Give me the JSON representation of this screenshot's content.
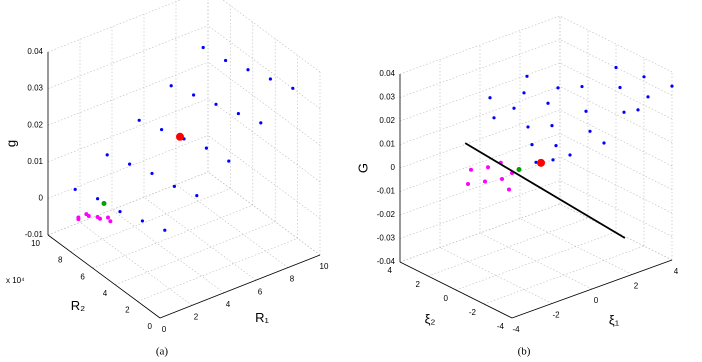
{
  "chart_data": [
    {
      "type": "scatter3d",
      "caption": "(a)",
      "xlabel": "R₁",
      "ylabel": "R₂",
      "zlabel": "g",
      "exponent": "x 10⁴",
      "xlim": [
        0,
        10
      ],
      "ylim": [
        0,
        10
      ],
      "zlim": [
        -0.01,
        0.04
      ],
      "xticks": [
        0,
        2,
        4,
        6,
        8,
        10
      ],
      "yticks": [
        0,
        2,
        4,
        6,
        8,
        10
      ],
      "zticks": [
        -0.01,
        0,
        0.01,
        0.02,
        0.03,
        0.04
      ],
      "series": [
        {
          "color": "#0000ff",
          "size": 1.6,
          "x": [
            1,
            1,
            1,
            1,
            1,
            3,
            3,
            3,
            3,
            3,
            5,
            5,
            5,
            5,
            5,
            7,
            7,
            7,
            7,
            7,
            9,
            9,
            9,
            9,
            9
          ],
          "y": [
            1,
            3,
            5,
            7,
            9,
            1,
            3,
            5,
            7,
            9,
            1,
            3,
            5,
            7,
            9,
            1,
            3,
            5,
            7,
            9,
            1,
            3,
            5,
            7,
            9
          ],
          "z": [
            0.01,
            0.008,
            0.006,
            0.005,
            0.003,
            0.016,
            0.014,
            0.013,
            0.011,
            0.009,
            0.022,
            0.021,
            0.019,
            0.017,
            0.015,
            0.029,
            0.027,
            0.025,
            0.023,
            0.021,
            0.035,
            0.033,
            0.031,
            0.029,
            0.028
          ]
        },
        {
          "color": "#ff00ff",
          "size": 2,
          "x": [
            0.5,
            1,
            1.5,
            0.8,
            2,
            1.2,
            2.5,
            0.3
          ],
          "y": [
            8,
            7,
            8.5,
            6.5,
            7.5,
            9,
            8,
            7
          ],
          "z": [
            -0.002,
            0,
            -0.004,
            0.001,
            -0.003,
            -0.005,
            -0.006,
            0.002
          ]
        },
        {
          "color": "#00a000",
          "size": 2.5,
          "x": [
            1.4
          ],
          "y": [
            7
          ],
          "z": [
            0.003
          ]
        },
        {
          "color": "#ff0000",
          "size": 4,
          "x": [
            4.75
          ],
          "y": [
            5
          ],
          "z": [
            0.02
          ]
        }
      ]
    },
    {
      "type": "scatter3d",
      "caption": "(b)",
      "xlabel": "ξ₁",
      "ylabel": "ξ₂",
      "zlabel": "G",
      "xlim": [
        -4,
        4
      ],
      "ylim": [
        -4,
        4
      ],
      "zlim": [
        -0.04,
        0.04
      ],
      "xticks": [
        -4,
        -2,
        0,
        2,
        4
      ],
      "yticks": [
        -4,
        -2,
        0,
        2,
        4
      ],
      "zticks": [
        -0.04,
        -0.03,
        -0.02,
        -0.01,
        0,
        0.01,
        0.02,
        0.03,
        0.04
      ],
      "series": [
        {
          "color": "#0000ff",
          "size": 1.6,
          "x": [
            0,
            0.5,
            1,
            0,
            0.5,
            1,
            1.5,
            2,
            1.5,
            2,
            2.5,
            3,
            2.5,
            3,
            3.5,
            4,
            3.5,
            4,
            4,
            3,
            0.5,
            1,
            2,
            1,
            2
          ],
          "y": [
            0,
            1,
            2,
            3,
            4,
            0,
            1,
            2,
            3,
            -1,
            0,
            1,
            2,
            -2,
            -1,
            0,
            -3,
            -4,
            -2,
            -3,
            -0.5,
            -1,
            -2,
            3,
            3.5
          ],
          "z": [
            0.002,
            0.005,
            0.008,
            0.012,
            0.016,
            0.006,
            0.01,
            0.015,
            0.018,
            0.012,
            0.016,
            0.022,
            0.02,
            0.02,
            0.026,
            0.03,
            0.028,
            0.034,
            0.032,
            0.024,
            0.003,
            0.005,
            0.01,
            0.013,
            0.022
          ]
        },
        {
          "color": "#ff00ff",
          "size": 2,
          "x": [
            -1,
            -1.5,
            -1,
            -0.5,
            -1.5,
            -2,
            -1,
            -0.5
          ],
          "y": [
            1,
            1.5,
            2,
            1,
            2.5,
            2,
            0.5,
            1.8
          ],
          "z": [
            -0.005,
            -0.006,
            -0.003,
            -0.004,
            -0.004,
            -0.007,
            -0.008,
            -0.002
          ]
        },
        {
          "color": "#00a000",
          "size": 2.5,
          "x": [
            -0.5
          ],
          "y": [
            0.5
          ],
          "z": [
            -0.001
          ]
        },
        {
          "color": "#ff0000",
          "size": 4,
          "x": [
            0.25
          ],
          "y": [
            0
          ],
          "z": [
            0.001
          ]
        },
        {
          "color": "#000000",
          "line": true,
          "x": [
            -0.67,
            -1.54
          ],
          "y": [
            4.1,
            -8.55
          ],
          "z": [
            0,
            0
          ]
        }
      ]
    }
  ]
}
